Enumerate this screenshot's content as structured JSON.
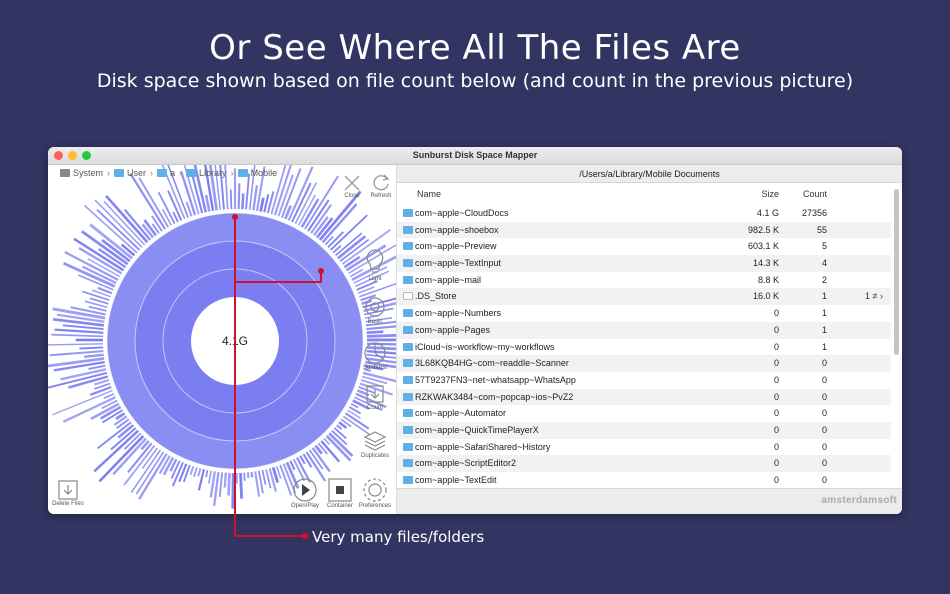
{
  "hero": {
    "title": "Or See Where All The Files Are",
    "subtitle": "Disk space shown based on file count below (and count in the previous picture)"
  },
  "window": {
    "title": "Sunburst Disk Space Mapper",
    "breadcrumb": [
      "System",
      "User",
      "a",
      "Library",
      "Mobile"
    ],
    "center_label": "4.1G",
    "path": "/Users/a/Library/Mobile Documents",
    "brand": "amsterdamsoft"
  },
  "tools": {
    "close": "Close",
    "refresh": "Refresh",
    "light": "Light",
    "basic": "Basic",
    "sunburst": "Sunburst",
    "count": "Count",
    "duplicates": "Duplicates",
    "delete_files": "Delete Files",
    "open_play": "Open/Play",
    "container": "Container",
    "preferences": "Preferences"
  },
  "table": {
    "headers": {
      "name": "Name",
      "size": "Size",
      "count": "Count"
    },
    "rows": [
      {
        "name": "com~apple~CloudDocs",
        "size": "4.1 G",
        "count": "27356",
        "extra": "",
        "icon": "folder-icon"
      },
      {
        "name": "com~apple~shoebox",
        "size": "982.5 K",
        "count": "55",
        "extra": "",
        "icon": "folder-icon"
      },
      {
        "name": "com~apple~Preview",
        "size": "603.1 K",
        "count": "5",
        "extra": "",
        "icon": "folder-icon"
      },
      {
        "name": "com~apple~TextInput",
        "size": "14.3 K",
        "count": "4",
        "extra": "",
        "icon": "folder-icon"
      },
      {
        "name": "com~apple~mail",
        "size": "8.8 K",
        "count": "2",
        "extra": "",
        "icon": "folder-icon"
      },
      {
        "name": ".DS_Store",
        "size": "16.0 K",
        "count": "1",
        "extra": "1 ≠ ›",
        "icon": "document-icon"
      },
      {
        "name": "com~apple~Numbers",
        "size": "0",
        "count": "1",
        "extra": "",
        "icon": "folder-icon"
      },
      {
        "name": "com~apple~Pages",
        "size": "0",
        "count": "1",
        "extra": "",
        "icon": "folder-icon"
      },
      {
        "name": "iCloud~is~workflow~my~workflows",
        "size": "0",
        "count": "1",
        "extra": "",
        "icon": "folder-icon"
      },
      {
        "name": "3L68KQB4HG~com~readdle~Scanner",
        "size": "0",
        "count": "0",
        "extra": "",
        "icon": "folder-icon"
      },
      {
        "name": "57T9237FN3~net~whatsapp~WhatsApp",
        "size": "0",
        "count": "0",
        "extra": "",
        "icon": "folder-icon"
      },
      {
        "name": "RZKWAK3484~com~popcap~ios~PvZ2",
        "size": "0",
        "count": "0",
        "extra": "",
        "icon": "folder-icon"
      },
      {
        "name": "com~apple~Automator",
        "size": "0",
        "count": "0",
        "extra": "",
        "icon": "folder-icon"
      },
      {
        "name": "com~apple~QuickTimePlayerX",
        "size": "0",
        "count": "0",
        "extra": "",
        "icon": "folder-icon"
      },
      {
        "name": "com~apple~SafariShared~History",
        "size": "0",
        "count": "0",
        "extra": "",
        "icon": "folder-icon"
      },
      {
        "name": "com~apple~ScriptEditor2",
        "size": "0",
        "count": "0",
        "extra": "",
        "icon": "folder-icon"
      },
      {
        "name": "com~apple~TextEdit",
        "size": "0",
        "count": "0",
        "extra": "",
        "icon": "folder-icon"
      }
    ]
  },
  "annotation": {
    "text": "Very many files/folders"
  },
  "colors": {
    "background": "#323461",
    "sunburst": "#7b7ef0",
    "annotation": "#d0112b"
  }
}
